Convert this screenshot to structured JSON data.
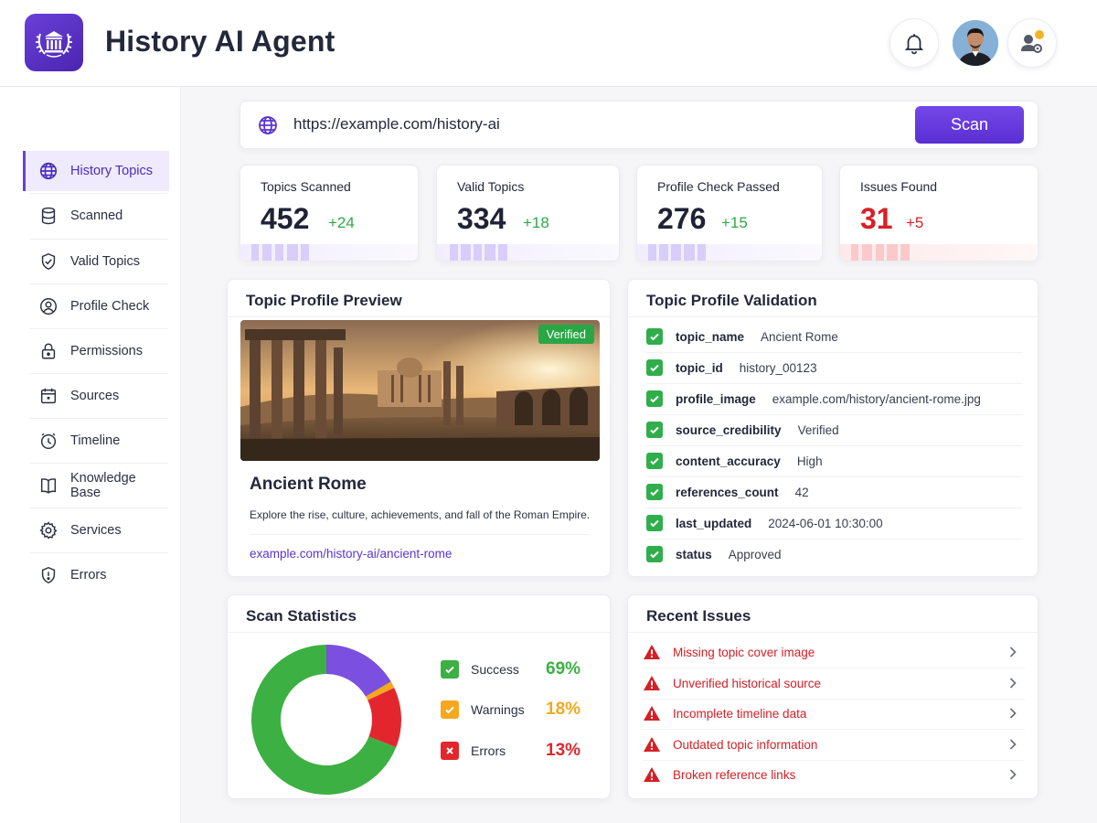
{
  "header": {
    "title": "History AI Agent",
    "logo_icon": "temple-laurel-icon",
    "notification_icon": "bell-icon",
    "settings_icon": "user-gear-icon",
    "accent_color": "#5b34d1"
  },
  "sidebar": {
    "items": [
      {
        "label": "History Topics",
        "icon": "globe-icon",
        "active": true
      },
      {
        "label": "Scanned",
        "icon": "database-icon"
      },
      {
        "label": "Valid Topics",
        "icon": "shield-check-icon"
      },
      {
        "label": "Profile Check",
        "icon": "user-circle-icon"
      },
      {
        "label": "Permissions",
        "icon": "lock-icon"
      },
      {
        "label": "Sources",
        "icon": "calendar-icon"
      },
      {
        "label": "Timeline",
        "icon": "clock-icon"
      },
      {
        "label": "Knowledge Base",
        "icon": "book-icon"
      },
      {
        "label": "Services",
        "icon": "gear-icon"
      },
      {
        "label": "Errors",
        "icon": "shield-alert-icon"
      }
    ]
  },
  "scan": {
    "url": "https://example.com/history-ai",
    "button_label": "Scan"
  },
  "stats": [
    {
      "label": "Topics Scanned",
      "value": "452",
      "delta": "+24",
      "status": "positive"
    },
    {
      "label": "Valid Topics",
      "value": "334",
      "delta": "+18",
      "status": "positive"
    },
    {
      "label": "Profile Check Passed",
      "value": "276",
      "delta": "+15",
      "status": "positive"
    },
    {
      "label": "Issues Found",
      "value": "31",
      "delta": "+5",
      "status": "negative"
    }
  ],
  "preview": {
    "title": "Topic Profile Preview",
    "badge": "Verified",
    "topic_title": "Ancient Rome",
    "description": "Explore the rise, culture, achievements, and fall of the Roman Empire.",
    "link": "example.com/history-ai/ancient-rome"
  },
  "validation": {
    "title": "Topic Profile Validation",
    "rows": [
      {
        "key": "topic_name",
        "value": "Ancient Rome"
      },
      {
        "key": "topic_id",
        "value": "history_00123"
      },
      {
        "key": "profile_image",
        "value": "example.com/history/ancient-rome.jpg"
      },
      {
        "key": "source_credibility",
        "value": "Verified"
      },
      {
        "key": "content_accuracy",
        "value": "High"
      },
      {
        "key": "references_count",
        "value": "42"
      },
      {
        "key": "last_updated",
        "value": "2024-06-01 10:30:00"
      },
      {
        "key": "status",
        "value": "Approved"
      }
    ]
  },
  "scan_statistics": {
    "title": "Scan Statistics",
    "segments": [
      {
        "name": "Success",
        "percent": 69,
        "label": "69%",
        "color": "#3cb043"
      },
      {
        "name": "Warnings",
        "percent": 18,
        "label": "18%",
        "color": "#f4a81d"
      },
      {
        "name": "Errors",
        "percent": 13,
        "label": "13%",
        "color": "#e3262d"
      }
    ]
  },
  "issues": {
    "title": "Recent Issues",
    "items": [
      "Missing topic cover image",
      "Unverified historical source",
      "Incomplete timeline data",
      "Outdated topic information",
      "Broken reference links"
    ]
  }
}
